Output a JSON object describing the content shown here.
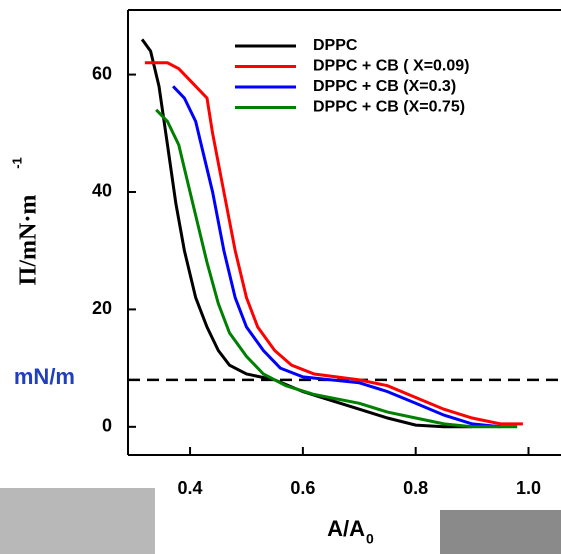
{
  "chart_data": {
    "type": "line",
    "x_label": "A/A",
    "x_label_subscript": "0",
    "y_label": "Π/mN·m",
    "y_label_superscript": "-1",
    "annotation": "mN/m",
    "reference_line": 8,
    "xlim": [
      0.29,
      1.07
    ],
    "ylim": [
      -4.8,
      71
    ],
    "xticks": [
      0.4,
      0.6,
      0.8,
      {
        "value": 1.0,
        "label": "1.0"
      }
    ],
    "yticks": [
      0,
      20,
      40,
      60
    ],
    "series": [
      {
        "name": "DPPC",
        "color": "#000000",
        "x": [
          0.315,
          0.33,
          0.345,
          0.36,
          0.375,
          0.39,
          0.41,
          0.43,
          0.45,
          0.47,
          0.5,
          0.55,
          0.6,
          0.65,
          0.7,
          0.75,
          0.8,
          0.85,
          0.9
        ],
        "values": [
          66,
          64,
          58,
          48,
          38,
          30,
          22,
          17,
          13,
          10.5,
          9,
          8,
          6,
          4.5,
          3,
          1.5,
          0.3,
          0,
          0
        ]
      },
      {
        "name": "DPPC + CB ( X=0.09)",
        "color": "#ff0000",
        "x": [
          0.32,
          0.36,
          0.38,
          0.4,
          0.43,
          0.44,
          0.46,
          0.48,
          0.5,
          0.52,
          0.55,
          0.58,
          0.62,
          0.7,
          0.75,
          0.8,
          0.85,
          0.9,
          0.95,
          0.99
        ],
        "values": [
          62,
          62,
          61,
          59,
          56,
          50,
          40,
          30,
          22,
          17,
          13,
          10.5,
          9,
          8,
          7,
          5,
          3,
          1.5,
          0.5,
          0.5
        ]
      },
      {
        "name": "DPPC + CB (X=0.3)",
        "color": "#0000ff",
        "x": [
          0.37,
          0.39,
          0.41,
          0.42,
          0.44,
          0.46,
          0.48,
          0.5,
          0.53,
          0.56,
          0.6,
          0.7,
          0.75,
          0.8,
          0.85,
          0.9,
          0.95
        ],
        "values": [
          58,
          56,
          52,
          48,
          40,
          30,
          22,
          17,
          13,
          10,
          8.5,
          7.5,
          6,
          4,
          2,
          0.5,
          0
        ]
      },
      {
        "name": "DPPC + CB (X=0.75)",
        "color": "#008000",
        "x": [
          0.34,
          0.36,
          0.38,
          0.39,
          0.41,
          0.43,
          0.45,
          0.47,
          0.5,
          0.53,
          0.57,
          0.62,
          0.7,
          0.75,
          0.8,
          0.85,
          0.9,
          0.98
        ],
        "values": [
          54,
          52,
          48,
          44,
          36,
          28,
          21,
          16,
          12,
          9,
          7,
          5.5,
          4,
          2.5,
          1.5,
          0.5,
          0,
          0
        ]
      }
    ]
  }
}
